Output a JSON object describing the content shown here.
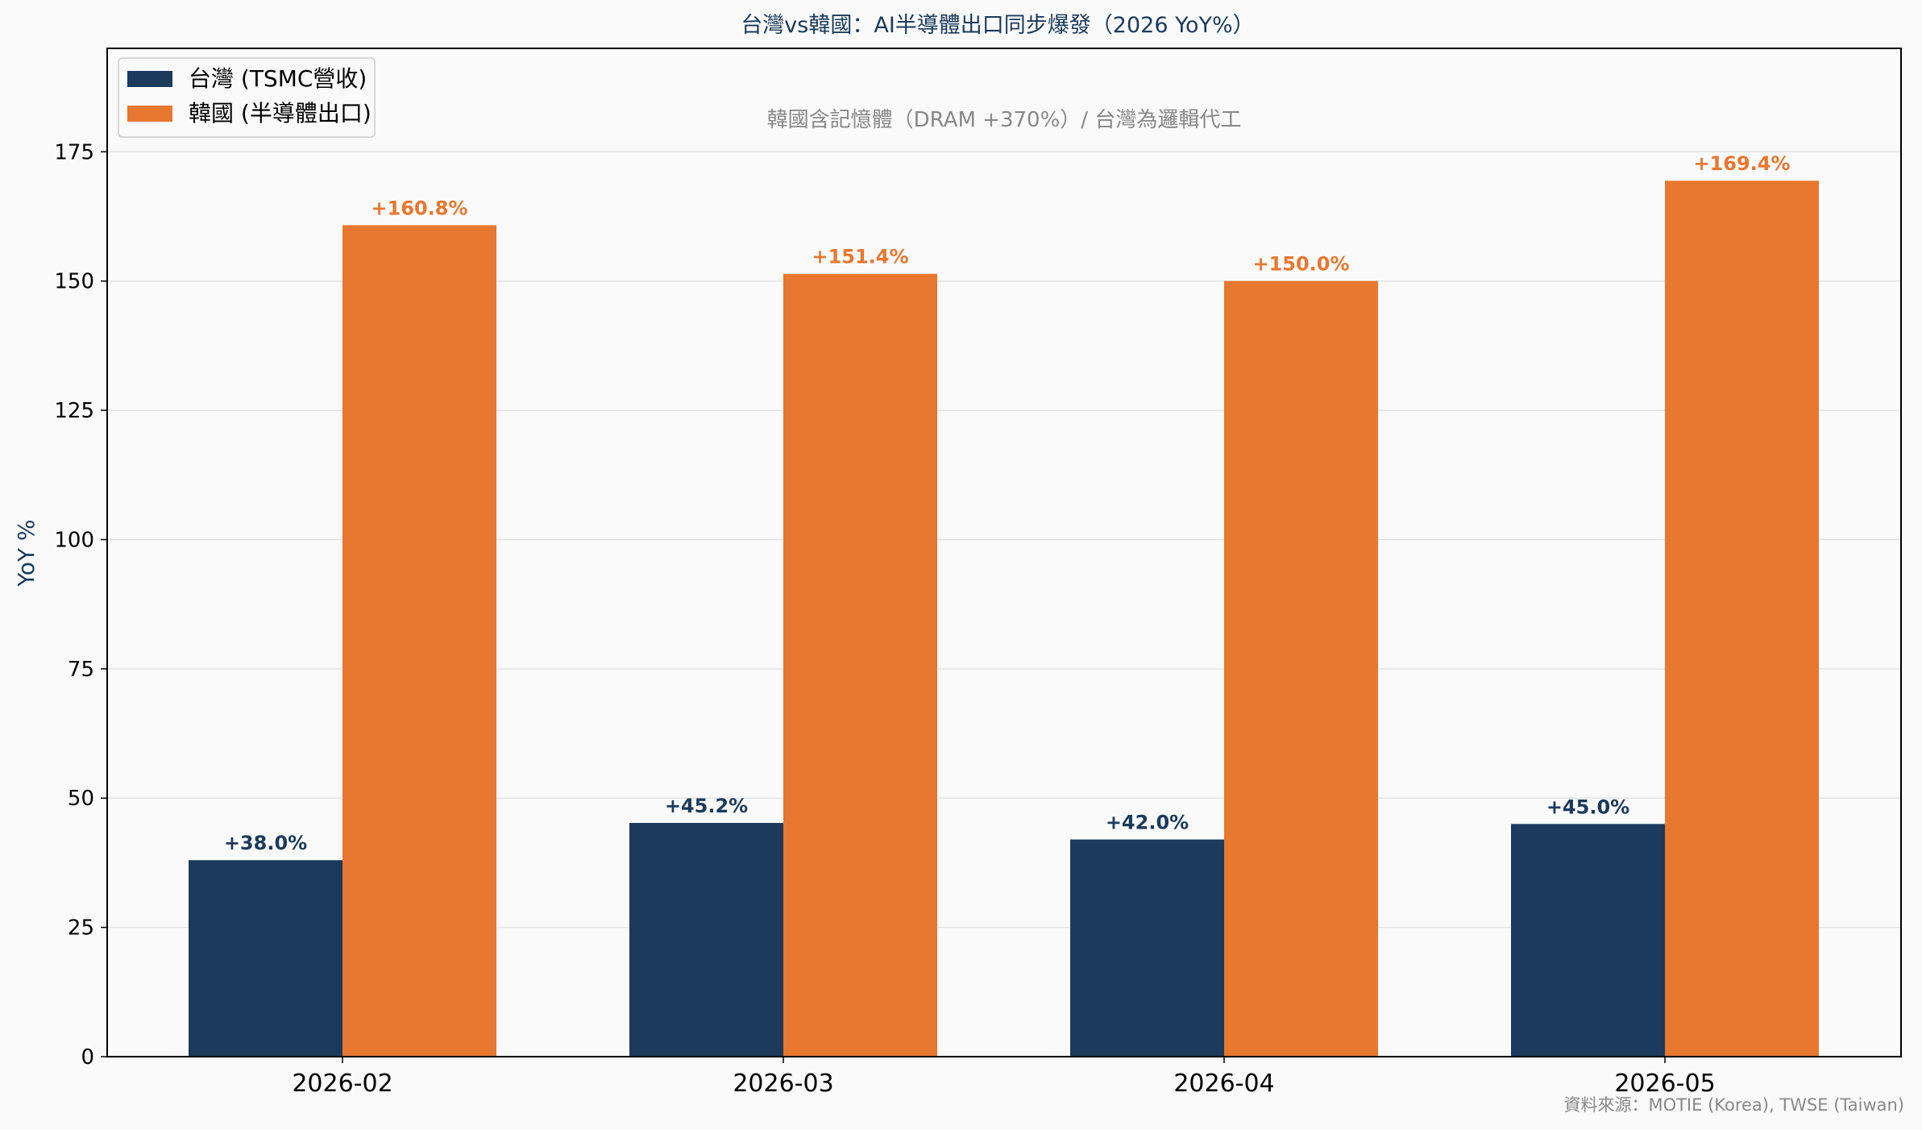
{
  "colors": {
    "taiwan": "#1b3a5c",
    "korea": "#e8772f",
    "background": "#fafafa",
    "grid": "#e3e3e3",
    "axis": "#000000"
  },
  "chart_data": {
    "type": "bar",
    "title": "台灣vs韓國：AI半導體出口同步爆發（2026 YoY%）",
    "subtitle": "韓國含記憶體（DRAM +370%）/ 台灣為邏輯代工",
    "xlabel": "",
    "ylabel": "YoY %",
    "ylim": [
      0,
      195
    ],
    "yticks": [
      0,
      25,
      50,
      75,
      100,
      125,
      150,
      175
    ],
    "grid": true,
    "legend_position": "top-left",
    "categories": [
      "2026-02",
      "2026-03",
      "2026-04",
      "2026-05"
    ],
    "series": [
      {
        "name": "台灣 (TSMC營收)",
        "values": [
          38.0,
          45.2,
          42.0,
          45.0
        ],
        "labels": [
          "+38.0%",
          "+45.2%",
          "+42.0%",
          "+45.0%"
        ],
        "color": "#1b3a5c"
      },
      {
        "name": "韓國 (半導體出口)",
        "values": [
          160.8,
          151.4,
          150.0,
          169.4
        ],
        "labels": [
          "+160.8%",
          "+151.4%",
          "+150.0%",
          "+169.4%"
        ],
        "color": "#e8772f"
      }
    ],
    "source": "資料來源：MOTIE (Korea), TWSE (Taiwan)"
  }
}
